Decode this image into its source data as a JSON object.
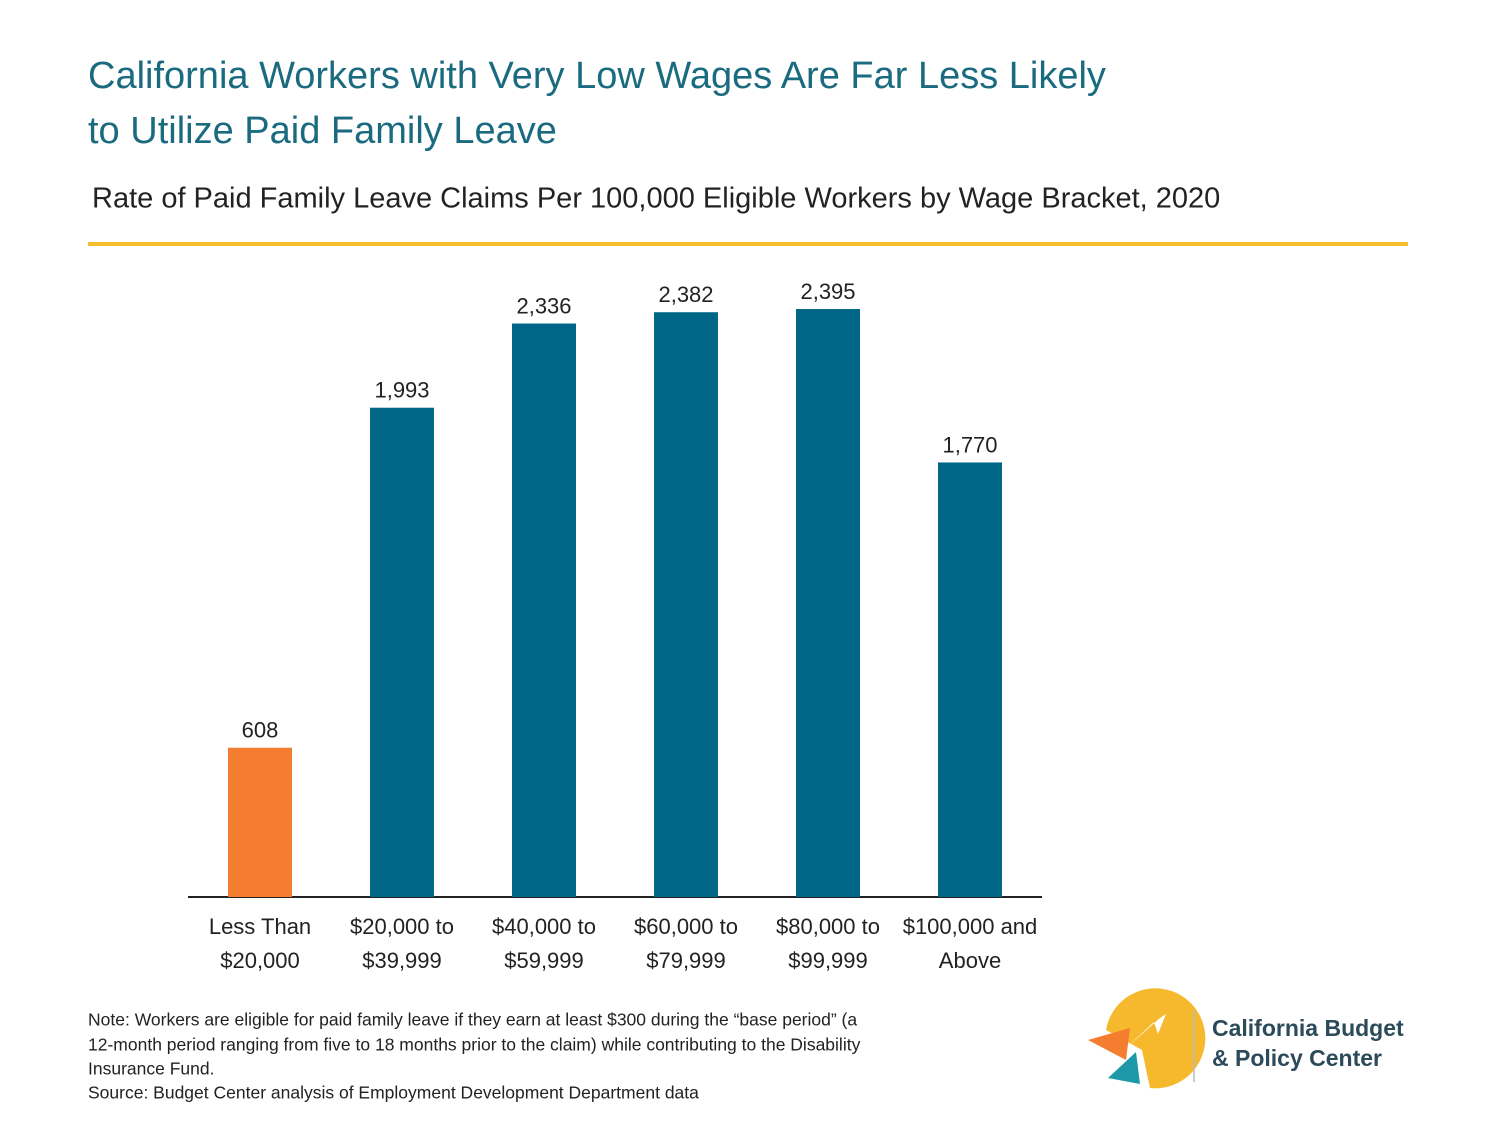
{
  "chart_data": {
    "type": "bar",
    "title": [
      "California Workers with Very Low Wages Are Far Less Likely",
      "to Utilize Paid Family Leave"
    ],
    "subtitle": "Rate of Paid Family Leave Claims Per 100,000 Eligible Workers by Wage Bracket, 2020",
    "categories": [
      [
        "Less Than",
        "$20,000"
      ],
      [
        "$20,000 to",
        "$39,999"
      ],
      [
        "$40,000 to",
        "$59,999"
      ],
      [
        "$60,000 to",
        "$79,999"
      ],
      [
        "$80,000 to",
        "$99,999"
      ],
      [
        "$100,000 and",
        "Above"
      ]
    ],
    "values": [
      608,
      1993,
      2336,
      2382,
      2395,
      1770
    ],
    "value_labels": [
      "608",
      "1,993",
      "2,336",
      "2,382",
      "2,395",
      "1,770"
    ],
    "colors": [
      "#f47d30",
      "#006688",
      "#006688",
      "#006688",
      "#006688",
      "#006688"
    ],
    "note": [
      "Note: Workers are eligible for paid family leave if they earn at least $300 during the “base period” (a",
      "12-month period ranging from five to 18 months prior to the claim) while contributing to the Disability",
      "Insurance Fund."
    ],
    "source": "Source: Budget Center analysis of Employment Development Department data"
  },
  "logo": [
    "California Budget",
    "& Policy Center"
  ]
}
